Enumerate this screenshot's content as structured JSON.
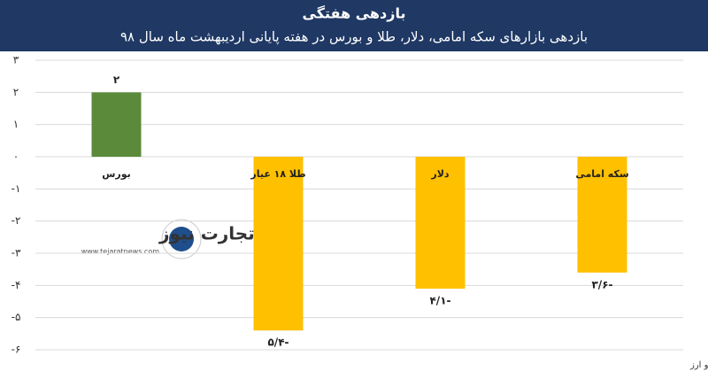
{
  "chart_data": {
    "type": "bar",
    "title": "بازدهی هفتگی",
    "subtitle": "بازدهی بازارهای سکه امامی، دلار، طلا و بورس در هفته پایانی اردیبهشت ماه سال ۹۸",
    "source": "منبع: شبکه اطلاع‌رسانی طلا، سکه و ارز",
    "logo_text": "تجارت نیوز",
    "logo_url": "www.tejaratnews.com",
    "categories": [
      "بورس",
      "طلا ۱۸ عیار",
      "دلار",
      "سکه امامی"
    ],
    "values": [
      2,
      -5.4,
      -4.1,
      -3.6
    ],
    "value_labels": [
      "۲",
      "-۵/۴",
      "-۴/۱",
      "-۳/۶"
    ],
    "colors": [
      "#5a8a3a",
      "#ffc000",
      "#ffc000",
      "#ffc000"
    ],
    "ylim": [
      -6,
      3
    ],
    "yticks": [
      {
        "value": -6,
        "label": "-۶"
      },
      {
        "value": -5,
        "label": "-۵"
      },
      {
        "value": -4,
        "label": "-۴"
      },
      {
        "value": -3,
        "label": "-۳"
      },
      {
        "value": -2,
        "label": "-۲"
      },
      {
        "value": -1,
        "label": "-۱"
      },
      {
        "value": 0,
        "label": "۰"
      },
      {
        "value": 1,
        "label": "۱"
      },
      {
        "value": 2,
        "label": "۲"
      },
      {
        "value": 3,
        "label": "۳"
      }
    ],
    "grid": true
  }
}
